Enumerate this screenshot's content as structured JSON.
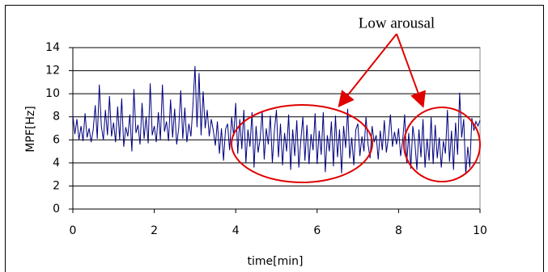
{
  "chart_data": {
    "type": "line",
    "annotation": "Low arousal",
    "xlabel": "time[min]",
    "ylabel": "MPF[Hz]",
    "x": [
      0,
      0.05,
      0.1,
      0.15,
      0.2,
      0.25,
      0.3,
      0.35,
      0.4,
      0.45,
      0.5,
      0.55,
      0.6,
      0.65,
      0.7,
      0.75,
      0.8,
      0.85,
      0.9,
      0.95,
      1,
      1.05,
      1.1,
      1.15,
      1.2,
      1.25,
      1.3,
      1.35,
      1.4,
      1.45,
      1.5,
      1.55,
      1.6,
      1.65,
      1.7,
      1.75,
      1.8,
      1.85,
      1.9,
      1.95,
      2,
      2.05,
      2.1,
      2.15,
      2.2,
      2.25,
      2.3,
      2.35,
      2.4,
      2.45,
      2.5,
      2.55,
      2.6,
      2.65,
      2.7,
      2.75,
      2.8,
      2.85,
      2.9,
      2.95,
      3,
      3.05,
      3.1,
      3.15,
      3.2,
      3.25,
      3.3,
      3.35,
      3.4,
      3.45,
      3.5,
      3.55,
      3.6,
      3.65,
      3.7,
      3.75,
      3.8,
      3.85,
      3.9,
      3.95,
      4,
      4.05,
      4.1,
      4.15,
      4.2,
      4.25,
      4.3,
      4.35,
      4.4,
      4.45,
      4.5,
      4.55,
      4.6,
      4.65,
      4.7,
      4.75,
      4.8,
      4.85,
      4.9,
      4.95,
      5,
      5.05,
      5.1,
      5.15,
      5.2,
      5.25,
      5.3,
      5.35,
      5.4,
      5.45,
      5.5,
      5.55,
      5.6,
      5.65,
      5.7,
      5.75,
      5.8,
      5.85,
      5.9,
      5.95,
      6,
      6.05,
      6.1,
      6.15,
      6.2,
      6.25,
      6.3,
      6.35,
      6.4,
      6.45,
      6.5,
      6.55,
      6.6,
      6.65,
      6.7,
      6.75,
      6.8,
      6.85,
      6.9,
      6.95,
      7,
      7.05,
      7.1,
      7.15,
      7.2,
      7.25,
      7.3,
      7.35,
      7.4,
      7.45,
      7.5,
      7.55,
      7.6,
      7.65,
      7.7,
      7.75,
      7.8,
      7.85,
      7.9,
      7.95,
      8,
      8.05,
      8.1,
      8.15,
      8.2,
      8.25,
      8.3,
      8.35,
      8.4,
      8.45,
      8.5,
      8.55,
      8.6,
      8.65,
      8.7,
      8.75,
      8.8,
      8.85,
      8.9,
      8.95,
      9,
      9.05,
      9.1,
      9.15,
      9.2,
      9.25,
      9.3,
      9.35,
      9.4,
      9.45,
      9.5,
      9.55,
      9.6,
      9.65,
      9.7,
      9.75,
      9.8,
      9.85,
      9.9,
      9.95,
      10
    ],
    "series": [
      {
        "color": "#000080",
        "values": [
          8.1,
          6.5,
          7.8,
          6.0,
          7.2,
          5.9,
          8.3,
          6.2,
          7.0,
          5.8,
          6.9,
          9.0,
          6.1,
          10.8,
          7.2,
          6.0,
          8.6,
          6.4,
          9.8,
          6.3,
          7.5,
          5.8,
          8.9,
          6.0,
          9.6,
          5.4,
          7.1,
          6.3,
          8.2,
          5.0,
          10.4,
          6.6,
          7.3,
          5.6,
          9.2,
          6.1,
          8.0,
          5.7,
          10.9,
          6.4,
          7.2,
          5.8,
          8.4,
          6.0,
          10.8,
          6.7,
          7.6,
          5.9,
          9.5,
          6.2,
          8.7,
          5.6,
          7.0,
          10.3,
          6.1,
          8.8,
          5.8,
          7.4,
          6.3,
          9.0,
          12.4,
          7.1,
          11.8,
          6.4,
          10.2,
          7.0,
          8.6,
          6.3,
          7.8,
          6.8,
          5.5,
          7.6,
          4.8,
          7.0,
          4.2,
          6.9,
          7.4,
          5.1,
          8.0,
          6.3,
          9.2,
          4.8,
          7.8,
          5.2,
          8.6,
          4.0,
          6.9,
          5.4,
          8.4,
          3.6,
          7.2,
          4.9,
          6.1,
          8.5,
          4.3,
          7.0,
          5.6,
          8.1,
          4.0,
          6.8,
          8.6,
          4.5,
          7.4,
          3.8,
          6.6,
          5.0,
          8.2,
          3.4,
          6.9,
          4.6,
          7.7,
          3.6,
          6.0,
          8.0,
          4.2,
          7.3,
          3.9,
          6.5,
          5.1,
          8.3,
          3.9,
          6.8,
          4.7,
          8.4,
          3.2,
          6.4,
          5.0,
          7.6,
          3.7,
          8.1,
          4.5,
          6.9,
          3.1,
          7.2,
          5.3,
          8.7,
          4.4,
          6.2,
          3.8,
          6.9,
          7.4,
          4.6,
          6.3,
          5.0,
          8.0,
          5.6,
          4.4,
          7.2,
          5.8,
          6.4,
          4.3,
          6.8,
          5.1,
          7.7,
          4.9,
          6.2,
          8.2,
          5.4,
          6.7,
          5.6,
          7.0,
          4.6,
          5.9,
          8.2,
          4.0,
          6.6,
          3.5,
          7.2,
          5.8,
          3.4,
          6.9,
          4.5,
          7.8,
          3.6,
          6.1,
          4.2,
          8.0,
          3.9,
          7.3,
          4.4,
          6.2,
          3.6,
          5.9,
          4.8,
          8.6,
          4.1,
          6.8,
          3.4,
          7.5,
          4.7,
          10.1,
          6.2,
          7.8,
          3.0,
          5.4,
          3.6,
          7.9,
          6.8,
          7.6,
          7.2,
          7.7
        ]
      }
    ],
    "xlim": [
      0,
      10
    ],
    "xticks": [
      0,
      2,
      4,
      6,
      8,
      10
    ],
    "ylim": [
      0,
      14
    ],
    "yticks": [
      0,
      2,
      4,
      6,
      8,
      10,
      12,
      14
    ],
    "grid": true
  }
}
